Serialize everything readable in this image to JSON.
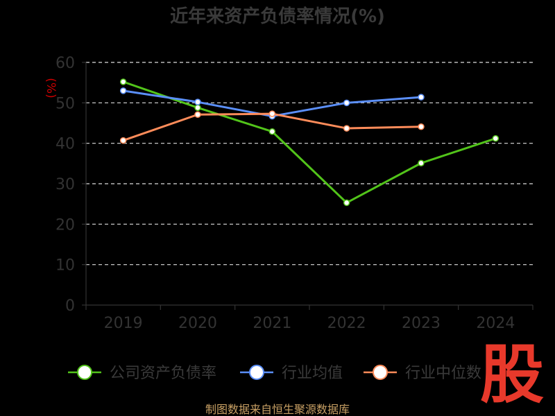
{
  "chart_data": {
    "type": "line",
    "title": "近年来资产负债率情况(%)",
    "ylabel": "(%)",
    "xlabel": "",
    "categories": [
      "2019",
      "2020",
      "2021",
      "2022",
      "2023",
      "2024"
    ],
    "ylim": [
      0,
      60
    ],
    "yticks": [
      0,
      10,
      20,
      30,
      40,
      50,
      60
    ],
    "grid": true,
    "legend_position": "bottom",
    "series": [
      {
        "name": "公司资产负债率",
        "color": "#52c41a",
        "values": [
          55.2,
          48.8,
          42.9,
          25.3,
          35.1,
          41.2
        ]
      },
      {
        "name": "行业均值",
        "color": "#5b8ff9",
        "values": [
          53.0,
          50.2,
          46.7,
          50.0,
          51.4,
          null
        ]
      },
      {
        "name": "行业中位数",
        "color": "#ff8c5a",
        "values": [
          40.7,
          47.1,
          47.3,
          43.7,
          44.1,
          null
        ]
      }
    ]
  },
  "footer": {
    "source": "制图数据来自恒生聚源数据库"
  },
  "watermark": {
    "text": "股"
  }
}
